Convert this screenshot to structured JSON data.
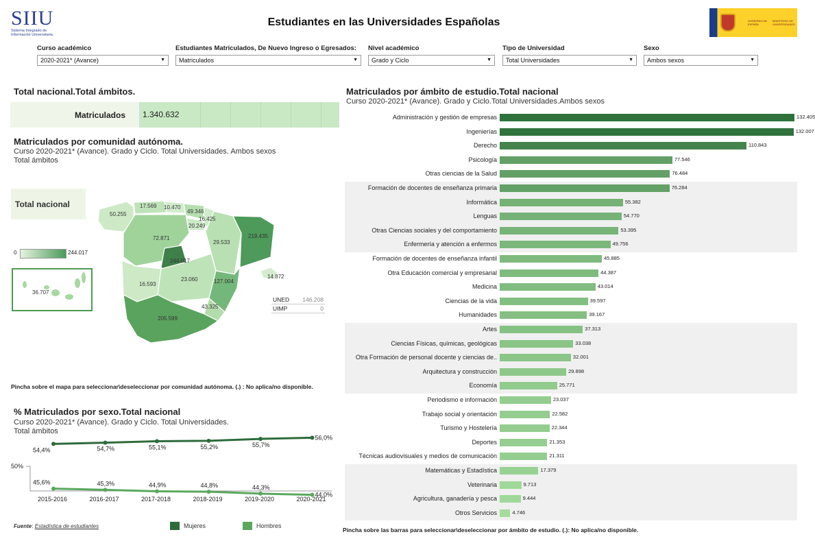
{
  "header": {
    "logo": "SIIU",
    "logo_sub": "Sistema Integrado de Información Universitaria",
    "title": "Estudiantes en las Universidades Españolas",
    "gov_text_1": "GOBIERNO DE ESPAÑA",
    "gov_text_2": "MINISTERIO DE UNIVERSIDADES"
  },
  "filters": [
    {
      "label": "Curso académico",
      "value": "2020-2021* (Avance)"
    },
    {
      "label": "Estudiantes Matriculados, De Nuevo Ingreso o Egresados:",
      "value": "Matriculados"
    },
    {
      "label": "Nivel académico",
      "value": "Grado y Ciclo"
    },
    {
      "label": "Tipo de Universidad",
      "value": "Total Universidades"
    },
    {
      "label": "Sexo",
      "value": "Ambos sexos"
    }
  ],
  "total": {
    "title": "Total nacional.Total ámbitos.",
    "label": "Matriculados",
    "value": "1.340.632"
  },
  "map": {
    "title": "Matriculados por comunidad autónoma.",
    "subtitle": "Curso 2020-2021* (Avance). Grado y Ciclo. Total Universidades. Ambos sexos",
    "subtitle2": "Total ámbitos",
    "total_label": "Total nacional",
    "legend_min": "0",
    "legend_max": "244.017",
    "regions": {
      "galicia": "50.255",
      "asturias": "17.569",
      "cantabria": "10.470",
      "paisvasco": "49.346",
      "navarra": "16.425",
      "rioja": "20.249",
      "castillaleon": "72.871",
      "aragon": "29.533",
      "cataluna": "219.435",
      "madrid": "244.017",
      "extremadura": "16.593",
      "castillamancha": "23.060",
      "valencia": "127.004",
      "murcia": "43.325",
      "andalucia": "205.599",
      "baleares": "14.872",
      "canarias": "36.707"
    },
    "uned_label": "UNED",
    "uned_value": "146.208",
    "uimp_label": "UIMP",
    "uimp_value": "0",
    "note": "Pincha sobre el mapa para seleccionar\\deseleccionar por comunidad autónoma. (.) : No aplica/no disponible."
  },
  "bars": {
    "title": "Matriculados por ámbito de estudio.Total nacional",
    "subtitle": "Curso 2020-2021* (Avance). Grado y Ciclo.Total Universidades.Ambos sexos",
    "note": "Pincha sobre las barras para seleccionar\\deseleccionar por ámbito de estudio. (.): No aplica/no disponible."
  },
  "chart_data": {
    "type": "bar",
    "categories": [
      "Administración y gestión de empresas",
      "Ingenierías",
      "Derecho",
      "Psicología",
      "Otras ciencias de la Salud",
      "Formación de docentes de enseñanza primaria",
      "Informática",
      "Lenguas",
      "Otras Ciencias sociales y del comportamiento",
      "Enfermería y atención a enfermos",
      "Formación de docentes de enseñanza infantil",
      "Otra Educación comercial y empresarial",
      "Medicina",
      "Ciencias de la vida",
      "Humanidades",
      "Artes",
      "Ciencias Físicas, químicas, geológicas",
      "Otra Formación de personal docente y ciencias de..",
      "Arquitectura y construcción",
      "Economía",
      "Periodismo e información",
      "Trabajo social y orientación",
      "Turismo y Hostelería",
      "Deportes",
      "Técnicas audiovisuales y medios de comunicación",
      "Matemáticas y Estadística",
      "Veterinaria",
      "Agricultura, ganadería y pesca",
      "Otros Servicios"
    ],
    "values": [
      132405,
      132007,
      110843,
      77546,
      76484,
      76284,
      55382,
      54770,
      53395,
      49756,
      45885,
      44387,
      43014,
      39597,
      39167,
      37313,
      33038,
      32001,
      29898,
      25771,
      23037,
      22582,
      22344,
      21353,
      21311,
      17379,
      9713,
      9444,
      4746
    ],
    "labels": [
      "132.405",
      "132.007",
      "110.843",
      "77.546",
      "76.484",
      "76.284",
      "55.382",
      "54.770",
      "53.395",
      "49.756",
      "45.885",
      "44.387",
      "43.014",
      "39.597",
      "39.167",
      "37.313",
      "33.038",
      "32.001",
      "29.898",
      "25.771",
      "23.037",
      "22.582",
      "22.344",
      "21.353",
      "21.311",
      "17.379",
      "9.713",
      "9.444",
      "4.746"
    ]
  },
  "sex": {
    "title": "% Matriculados por sexo.Total nacional",
    "subtitle": "Curso 2020-2021* (Avance). Grado y Ciclo. Total Universidades.",
    "subtitle2": "Total ámbitos",
    "ytick": "50%",
    "years": [
      "2015-2016",
      "2016-2017",
      "2017-2018",
      "2018-2019",
      "2019-2020",
      "2020-2021"
    ],
    "mujeres": [
      54.4,
      54.7,
      55.1,
      55.2,
      55.7,
      56.0
    ],
    "hombres": [
      45.6,
      45.3,
      44.9,
      44.8,
      44.3,
      44.0
    ],
    "mujeres_labels": [
      "54,4%",
      "54,7%",
      "55,1%",
      "55,2%",
      "55,7%",
      "56,0%"
    ],
    "hombres_labels": [
      "45,6%",
      "45,3%",
      "44,9%",
      "44,8%",
      "44,3%",
      "44,0%"
    ],
    "legend_mujeres": "Mujeres",
    "legend_hombres": "Hombres",
    "source_label": "Fuente",
    "source_link": "Estadística de estudiantes",
    "mujeres_color": "#2e6b3c",
    "hombres_color": "#5aa85e"
  }
}
